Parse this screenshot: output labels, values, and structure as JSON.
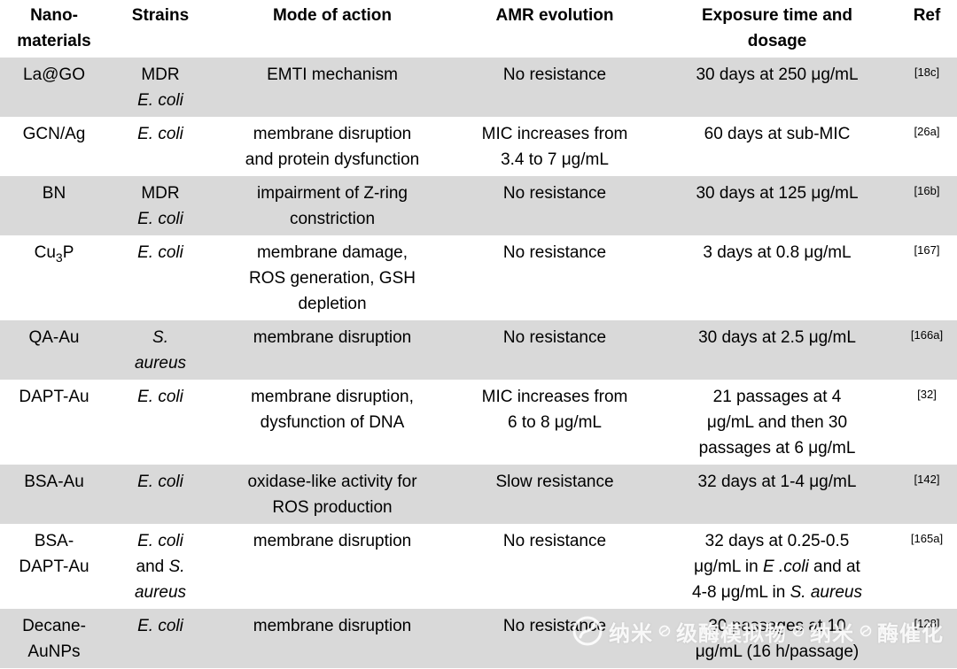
{
  "colors": {
    "row_shade": "#d9d9d9",
    "text": "#000000"
  },
  "table": {
    "columns": [
      {
        "name": "nanomaterials",
        "label": "Nano-\nmaterials"
      },
      {
        "name": "strains",
        "label": "Strains"
      },
      {
        "name": "mode-of-action",
        "label": "Mode of action"
      },
      {
        "name": "amr-evolution",
        "label": "AMR evolution"
      },
      {
        "name": "exposure-time-dosage",
        "label": "Exposure time and\ndosage"
      },
      {
        "name": "ref",
        "label": "Ref"
      }
    ],
    "rows": [
      {
        "cells": [
          "La@GO",
          [
            {
              "t": "MDR\n"
            },
            {
              "t": "E. coli",
              "i": true
            }
          ],
          "EMTI mechanism",
          "No resistance",
          "30 days at 250 μg/mL",
          "[18c]"
        ]
      },
      {
        "cells": [
          "GCN/Ag",
          [
            {
              "t": "E. coli",
              "i": true
            }
          ],
          "membrane disruption\nand protein dysfunction",
          "MIC increases from\n3.4 to 7 μg/mL",
          "60 days at sub-MIC",
          "[26a]"
        ]
      },
      {
        "cells": [
          "BN",
          [
            {
              "t": "MDR\n"
            },
            {
              "t": "E. coli",
              "i": true
            }
          ],
          "impairment of Z-ring\nconstriction",
          "No resistance",
          "30 days at 125 μg/mL",
          "[16b]"
        ]
      },
      {
        "cells": [
          [
            {
              "t": "Cu"
            },
            {
              "t": "3",
              "sub": true
            },
            {
              "t": "P"
            }
          ],
          [
            {
              "t": "E. coli",
              "i": true
            }
          ],
          "membrane damage,\nROS generation, GSH\ndepletion",
          "No resistance",
          "3 days at 0.8 μg/mL",
          "[167]"
        ]
      },
      {
        "cells": [
          "QA-Au",
          [
            {
              "t": "S.\naureus",
              "i": true
            }
          ],
          "membrane disruption",
          "No resistance",
          "30 days at 2.5 μg/mL",
          "[166a]"
        ]
      },
      {
        "cells": [
          "DAPT-Au",
          [
            {
              "t": "E. coli",
              "i": true
            }
          ],
          "membrane disruption,\ndysfunction of DNA",
          "MIC increases from\n6 to 8 μg/mL",
          "21 passages at 4\nμg/mL and then 30\npassages at 6 μg/mL",
          "[32]"
        ]
      },
      {
        "cells": [
          "BSA-Au",
          [
            {
              "t": "E. coli",
              "i": true
            }
          ],
          "oxidase-like activity for\nROS production",
          "Slow resistance",
          "32 days at 1-4 μg/mL",
          "[142]"
        ]
      },
      {
        "cells": [
          "BSA-\nDAPT-Au",
          [
            {
              "t": "E. coli",
              "i": true
            },
            {
              "t": "\nand "
            },
            {
              "t": "S.\naureus",
              "i": true
            }
          ],
          "membrane disruption",
          "No resistance",
          [
            {
              "t": "32 days at 0.25-0.5\nμg/mL in "
            },
            {
              "t": "E .coli",
              "i": true
            },
            {
              "t": " and at\n4-8 μg/mL in "
            },
            {
              "t": "S. aureus",
              "i": true
            }
          ],
          "[165a]"
        ]
      },
      {
        "cells": [
          "Decane-\nAuNPs",
          [
            {
              "t": "E. coli",
              "i": true
            }
          ],
          "membrane disruption",
          "No resistance",
          "30 passages at 10\nμg/mL (16 h/passage)",
          "[128]"
        ]
      }
    ]
  },
  "watermark": {
    "segments": [
      "纳米",
      "级酶模拟物",
      "纳米",
      "酶催化"
    ]
  }
}
